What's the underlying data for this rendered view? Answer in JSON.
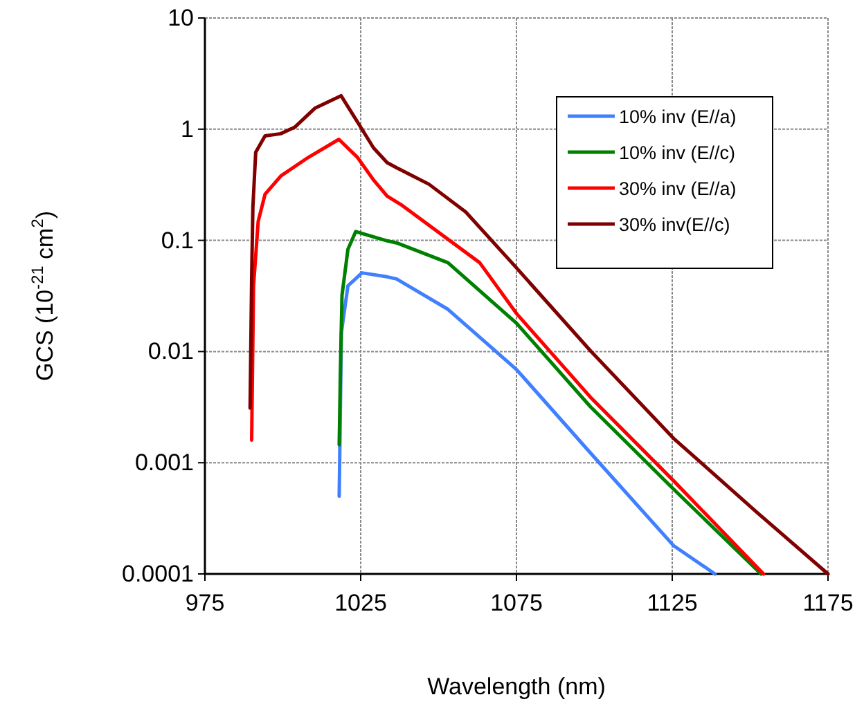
{
  "chart_data": {
    "type": "line",
    "xlabel": "Wavelength (nm)",
    "ylabel": "GCS (10$^{-21}$ cm$^{2}$)",
    "log": "y",
    "grid": true,
    "legend": "top right",
    "line_style": "solid",
    "marker": "none",
    "xlim": [
      975,
      1175
    ],
    "xticks": [
      975,
      1025,
      1075,
      1125,
      1175
    ],
    "ylim": [
      0.0001,
      10
    ],
    "yticks": [
      {
        "value": 0.0001,
        "label": "0.0001"
      },
      {
        "value": 0.001,
        "label": "0.001"
      },
      {
        "value": 0.01,
        "label": "0.01"
      },
      {
        "value": 0.1,
        "label": "0.1"
      },
      {
        "value": 1,
        "label": "1"
      },
      {
        "value": 10,
        "label": "10"
      }
    ],
    "series": [
      {
        "name": "10% inv (E//a)",
        "color": "#4080ff",
        "x": [
          1018.1,
          1018.8,
          1020.9,
          1025.4,
          1033.5,
          1036.5,
          1053,
          1075,
          1098.7,
          1125.4,
          1138.7
        ],
        "values": [
          0.0005,
          0.0148,
          0.039,
          0.051,
          0.047,
          0.045,
          0.024,
          0.0069,
          0.00123,
          0.00018,
          0.0001
        ]
      },
      {
        "name": "10% inv (E//c)",
        "color": "#008000",
        "x": [
          1018.1,
          1018.5,
          1019,
          1020.9,
          1023.4,
          1033.5,
          1036.5,
          1053,
          1075,
          1098.7,
          1125.4,
          1153.5
        ],
        "values": [
          0.00145,
          0.0069,
          0.032,
          0.083,
          0.12,
          0.099,
          0.095,
          0.063,
          0.018,
          0.0032,
          0.00058,
          0.0001
        ]
      },
      {
        "name": "30% inv (E//a)",
        "color": "#ff0000",
        "x": [
          990,
          990.6,
          992.1,
          994.3,
          999.4,
          1008.3,
          1018,
          1023.9,
          1029.1,
          1033.5,
          1037.9,
          1063.2,
          1075,
          1098.7,
          1125.4,
          1154.3
        ],
        "values": [
          0.0016,
          0.039,
          0.148,
          0.26,
          0.38,
          0.56,
          0.81,
          0.56,
          0.35,
          0.25,
          0.21,
          0.063,
          0.022,
          0.0039,
          0.00069,
          0.0001
        ]
      },
      {
        "name": "30% inv(E//c)",
        "color": "#800000",
        "x": [
          989.5,
          990,
          990.4,
          991.3,
          994.3,
          999.3,
          1003.8,
          1010.4,
          1018.7,
          1025.4,
          1029.1,
          1033.5,
          1036.5,
          1046.9,
          1058.7,
          1073.5,
          1098.7,
          1125.4,
          1152.1,
          1175
        ],
        "values": [
          0.0031,
          0.047,
          0.2,
          0.62,
          0.87,
          0.91,
          1.04,
          1.55,
          2.0,
          1.0,
          0.68,
          0.5,
          0.45,
          0.32,
          0.18,
          0.063,
          0.0102,
          0.00166,
          0.00036,
          0.0001
        ]
      }
    ]
  }
}
